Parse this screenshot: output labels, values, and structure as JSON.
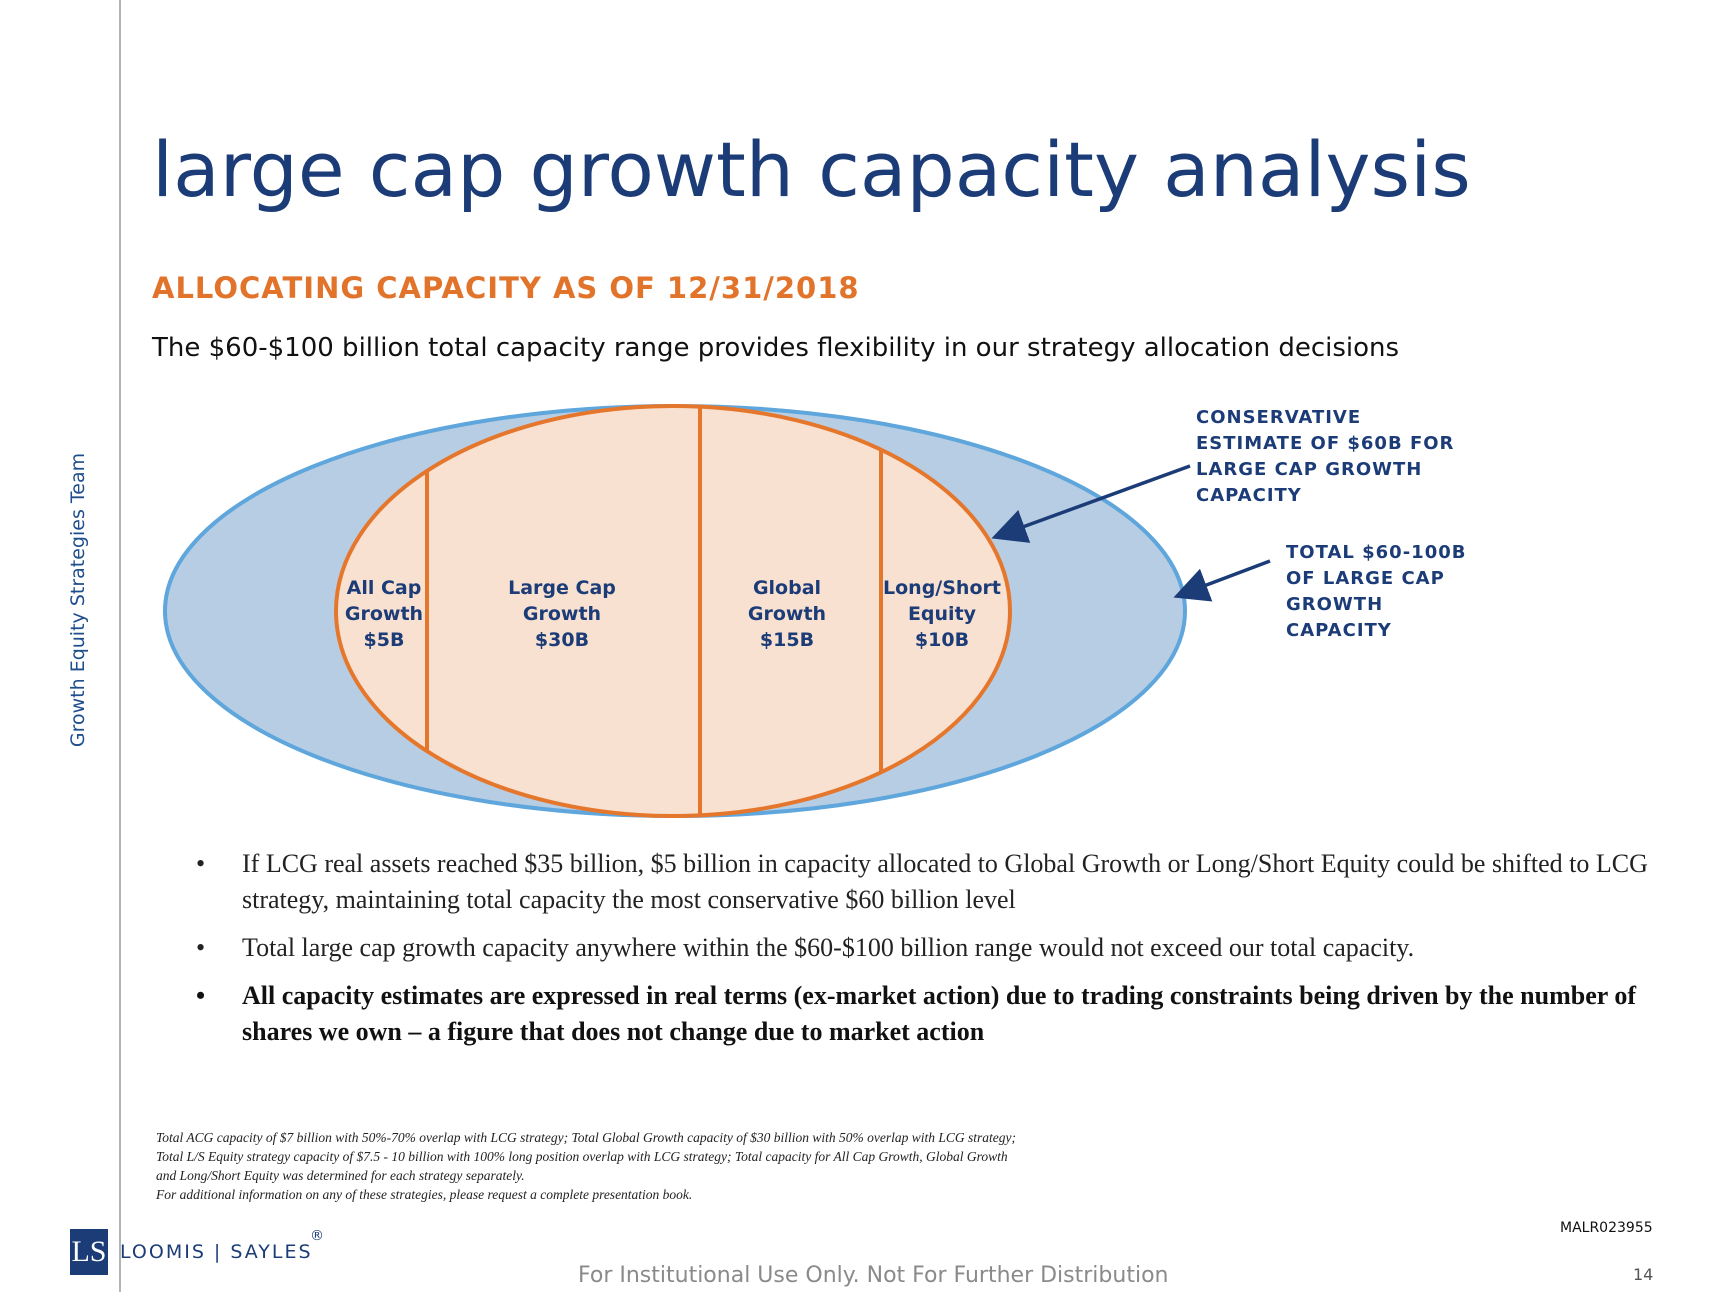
{
  "side_label": "Growth Equity Strategies Team",
  "title": "large cap growth capacity analysis",
  "subtitle": "ALLOCATING CAPACITY AS OF 12/31/2018",
  "lead": "The $60-$100 billion total capacity range provides flexibility in our strategy allocation decisions",
  "diagram": {
    "segments": [
      {
        "line1": "All Cap",
        "line2": "Growth",
        "line3": "$5B"
      },
      {
        "line1": "Large Cap",
        "line2": "Growth",
        "line3": "$30B"
      },
      {
        "line1": "Global",
        "line2": "Growth",
        "line3": "$15B"
      },
      {
        "line1": "Long/Short",
        "line2": "Equity",
        "line3": "$10B"
      }
    ],
    "callout_inner": [
      "CONSERVATIVE",
      "ESTIMATE OF $60B FOR",
      "LARGE CAP GROWTH",
      "CAPACITY"
    ],
    "callout_outer": [
      "TOTAL $60-100B",
      "OF LARGE CAP",
      "GROWTH",
      "CAPACITY"
    ],
    "colors": {
      "outer_fill": "#b7cde3",
      "outer_stroke": "#5ea6dc",
      "inner_fill": "#f9e1d1",
      "inner_stroke": "#e5772d",
      "label": "#1c3c78",
      "arrow": "#1c3c78"
    }
  },
  "bullets": [
    {
      "bullet": "•",
      "text": "If LCG real assets reached $35 billion, $5 billion in capacity allocated to Global Growth or Long/Short Equity could be shifted to LCG strategy, maintaining total capacity the most conservative $60 billion level"
    },
    {
      "bullet": "•",
      "text": "Total large cap growth capacity anywhere within the $60-$100 billion range would not exceed our total capacity."
    },
    {
      "bullet": "•",
      "text": "All capacity estimates are expressed in real terms (ex-market action) due to trading constraints being driven by the number of shares we own – a figure that does not change due to market action"
    }
  ],
  "footnotes": [
    "Total ACG capacity of $7 billion with 50%-70% overlap with LCG strategy; Total Global Growth capacity of $30 billion with 50% overlap with LCG strategy;",
    "Total L/S Equity strategy capacity of $7.5 - 10 billion with 100% long position overlap with LCG strategy; Total capacity for All Cap Growth, Global Growth",
    "and Long/Short Equity was determined for each strategy separately.",
    "For additional information on any of these strategies, please request a complete presentation book."
  ],
  "logo": {
    "mark": "LS",
    "text": "LOOMIS | SAYLES",
    "reg": "®"
  },
  "doc_id": "MALR023955",
  "disclaimer": "For Institutional Use Only. Not For Further Distribution",
  "page_number": "14"
}
